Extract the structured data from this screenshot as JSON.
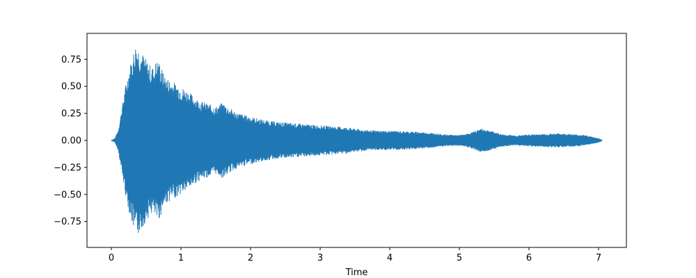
{
  "chart_data": {
    "type": "area",
    "title": "",
    "xlabel": "Time",
    "ylabel": "",
    "xlim": [
      -0.35,
      7.4
    ],
    "ylim": [
      -0.99,
      0.99
    ],
    "x_ticks": [
      0,
      1,
      2,
      3,
      4,
      5,
      6,
      7
    ],
    "x_tick_labels": [
      "0",
      "1",
      "2",
      "3",
      "4",
      "5",
      "6",
      "7"
    ],
    "y_ticks": [
      0.75,
      0.5,
      0.25,
      0.0,
      -0.25,
      -0.5,
      -0.75
    ],
    "y_tick_labels": [
      "0.75",
      "0.50",
      "0.25",
      "0.00",
      "−0.25",
      "−0.50",
      "−0.75"
    ],
    "grid": false,
    "legend": "none",
    "color": "#1f77b4",
    "series": [
      {
        "x": [
          0.0,
          0.05,
          0.1,
          0.15,
          0.2,
          0.25,
          0.3,
          0.35,
          0.38,
          0.42,
          0.5,
          0.55,
          0.6,
          0.65,
          0.7,
          0.75,
          0.8,
          0.9,
          1.0,
          1.1,
          1.2,
          1.3,
          1.4,
          1.5,
          1.6,
          1.7,
          1.8,
          1.9,
          2.0,
          2.2,
          2.4,
          2.6,
          2.8,
          3.0,
          3.2,
          3.4,
          3.6,
          3.8,
          4.0,
          4.2,
          4.4,
          4.6,
          4.8,
          5.0,
          5.1,
          5.2,
          5.3,
          5.4,
          5.5,
          5.6,
          5.8,
          6.0,
          6.2,
          6.4,
          6.6,
          6.8,
          6.9,
          7.0,
          7.05
        ],
        "envelope": [
          0.0,
          0.02,
          0.1,
          0.3,
          0.5,
          0.65,
          0.78,
          0.9,
          0.88,
          0.84,
          0.75,
          0.7,
          0.68,
          0.75,
          0.72,
          0.62,
          0.58,
          0.54,
          0.5,
          0.46,
          0.4,
          0.36,
          0.34,
          0.31,
          0.35,
          0.3,
          0.26,
          0.24,
          0.22,
          0.19,
          0.17,
          0.16,
          0.15,
          0.14,
          0.13,
          0.12,
          0.1,
          0.09,
          0.09,
          0.085,
          0.08,
          0.07,
          0.055,
          0.05,
          0.06,
          0.08,
          0.11,
          0.1,
          0.08,
          0.06,
          0.045,
          0.055,
          0.06,
          0.065,
          0.06,
          0.05,
          0.035,
          0.02,
          0.005
        ]
      }
    ]
  }
}
